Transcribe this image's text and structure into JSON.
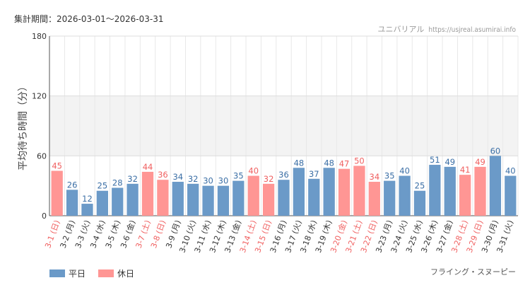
{
  "header": {
    "period_label": "集計期間：2026-03-01～2026-03-31",
    "site_name": "ユニバリアル",
    "site_url": "https://usjreal.asumirai.info"
  },
  "attraction_name": "フライング・スヌーピー",
  "legend": {
    "weekday": "平日",
    "holiday": "休日"
  },
  "colors": {
    "weekday": "#6b9ac8",
    "holiday": "#ff9694",
    "holiday_text": "#f06060",
    "weekday_text": "#3a6ea5",
    "band": "#f3f3f3"
  },
  "chart_data": {
    "type": "bar",
    "ylabel": "平均待ち時間（分）",
    "ylim": [
      0,
      180
    ],
    "yticks": [
      0,
      60,
      120,
      180
    ],
    "highlight_band": [
      60,
      120
    ],
    "categories": [
      "3-1 (日)",
      "3-2 (月)",
      "3-3 (火)",
      "3-4 (水)",
      "3-5 (木)",
      "3-6 (金)",
      "3-7 (土)",
      "3-8 (日)",
      "3-9 (月)",
      "3-10 (火)",
      "3-11 (水)",
      "3-12 (木)",
      "3-13 (金)",
      "3-14 (土)",
      "3-15 (日)",
      "3-16 (月)",
      "3-17 (火)",
      "3-18 (水)",
      "3-19 (木)",
      "3-20 (金)",
      "3-21 (土)",
      "3-22 (日)",
      "3-23 (月)",
      "3-24 (火)",
      "3-25 (水)",
      "3-26 (木)",
      "3-27 (金)",
      "3-28 (土)",
      "3-29 (日)",
      "3-30 (月)",
      "3-31 (火)"
    ],
    "values": [
      45,
      26,
      12,
      25,
      28,
      32,
      44,
      36,
      34,
      32,
      30,
      30,
      35,
      40,
      32,
      36,
      48,
      37,
      48,
      47,
      50,
      34,
      35,
      40,
      25,
      51,
      49,
      41,
      49,
      60,
      40
    ],
    "holiday": [
      true,
      false,
      false,
      false,
      false,
      false,
      true,
      true,
      false,
      false,
      false,
      false,
      false,
      true,
      true,
      false,
      false,
      false,
      false,
      true,
      true,
      true,
      false,
      false,
      false,
      false,
      false,
      true,
      true,
      false,
      false
    ]
  }
}
